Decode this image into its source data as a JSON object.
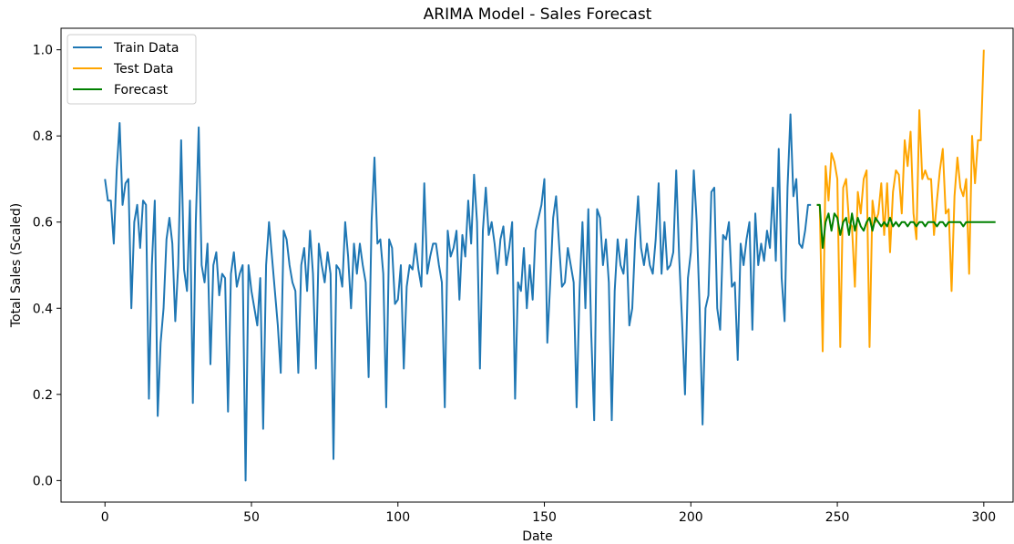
{
  "chart_data": {
    "type": "line",
    "title": "ARIMA Model - Sales Forecast",
    "xlabel": "Date",
    "ylabel": "Total Sales (Scaled)",
    "xlim": [
      -15,
      310
    ],
    "ylim": [
      -0.05,
      1.05
    ],
    "xticks": [
      0,
      50,
      100,
      150,
      200,
      250,
      300
    ],
    "yticks": [
      0.0,
      0.2,
      0.4,
      0.6,
      0.8,
      1.0
    ],
    "xtick_labels": [
      "0",
      "50",
      "100",
      "150",
      "200",
      "250",
      "300"
    ],
    "ytick_labels": [
      "0.0",
      "0.2",
      "0.4",
      "0.6",
      "0.8",
      "1.0"
    ],
    "grid": false,
    "legend_position": "top-left",
    "series": [
      {
        "name": "Train Data",
        "color": "#1f77b4",
        "x_start": 0,
        "values": [
          0.7,
          0.65,
          0.65,
          0.55,
          0.72,
          0.83,
          0.64,
          0.69,
          0.7,
          0.4,
          0.6,
          0.64,
          0.54,
          0.65,
          0.64,
          0.19,
          0.5,
          0.65,
          0.15,
          0.32,
          0.4,
          0.56,
          0.61,
          0.55,
          0.37,
          0.5,
          0.79,
          0.49,
          0.44,
          0.65,
          0.18,
          0.6,
          0.82,
          0.5,
          0.46,
          0.55,
          0.27,
          0.5,
          0.53,
          0.43,
          0.48,
          0.47,
          0.16,
          0.48,
          0.53,
          0.45,
          0.48,
          0.5,
          0.0,
          0.5,
          0.44,
          0.4,
          0.36,
          0.47,
          0.12,
          0.5,
          0.6,
          0.52,
          0.44,
          0.36,
          0.25,
          0.58,
          0.56,
          0.5,
          0.46,
          0.44,
          0.25,
          0.5,
          0.54,
          0.44,
          0.58,
          0.48,
          0.26,
          0.55,
          0.5,
          0.46,
          0.53,
          0.48,
          0.05,
          0.5,
          0.49,
          0.45,
          0.6,
          0.52,
          0.4,
          0.55,
          0.48,
          0.55,
          0.5,
          0.46,
          0.24,
          0.6,
          0.75,
          0.55,
          0.56,
          0.48,
          0.17,
          0.56,
          0.54,
          0.41,
          0.42,
          0.5,
          0.26,
          0.45,
          0.5,
          0.49,
          0.55,
          0.49,
          0.45,
          0.69,
          0.48,
          0.52,
          0.55,
          0.55,
          0.5,
          0.46,
          0.17,
          0.58,
          0.52,
          0.54,
          0.58,
          0.42,
          0.57,
          0.52,
          0.65,
          0.55,
          0.71,
          0.6,
          0.26,
          0.58,
          0.68,
          0.57,
          0.6,
          0.55,
          0.48,
          0.56,
          0.59,
          0.5,
          0.54,
          0.6,
          0.19,
          0.46,
          0.44,
          0.54,
          0.4,
          0.5,
          0.42,
          0.58,
          0.61,
          0.64,
          0.7,
          0.32,
          0.46,
          0.61,
          0.66,
          0.55,
          0.45,
          0.46,
          0.54,
          0.5,
          0.46,
          0.17,
          0.44,
          0.6,
          0.4,
          0.63,
          0.34,
          0.14,
          0.63,
          0.61,
          0.5,
          0.56,
          0.46,
          0.14,
          0.44,
          0.56,
          0.5,
          0.48,
          0.56,
          0.36,
          0.4,
          0.56,
          0.66,
          0.54,
          0.5,
          0.55,
          0.5,
          0.48,
          0.56,
          0.69,
          0.48,
          0.6,
          0.49,
          0.5,
          0.53,
          0.72,
          0.52,
          0.37,
          0.2,
          0.47,
          0.53,
          0.72,
          0.6,
          0.4,
          0.13,
          0.4,
          0.43,
          0.67,
          0.68,
          0.4,
          0.35,
          0.57,
          0.56,
          0.6,
          0.45,
          0.46,
          0.28,
          0.55,
          0.5,
          0.56,
          0.6,
          0.35,
          0.62,
          0.5,
          0.55,
          0.51,
          0.58,
          0.54,
          0.68,
          0.51,
          0.77,
          0.47,
          0.37,
          0.68,
          0.85,
          0.66,
          0.7,
          0.55,
          0.54,
          0.58,
          0.64,
          0.64
        ]
      },
      {
        "name": "Test Data",
        "color": "#ffa500",
        "x_start": 243,
        "values": [
          0.64,
          0.64,
          0.3,
          0.73,
          0.65,
          0.76,
          0.74,
          0.7,
          0.31,
          0.68,
          0.7,
          0.6,
          0.59,
          0.45,
          0.67,
          0.62,
          0.7,
          0.72,
          0.31,
          0.65,
          0.6,
          0.62,
          0.69,
          0.57,
          0.69,
          0.53,
          0.67,
          0.72,
          0.71,
          0.62,
          0.79,
          0.73,
          0.81,
          0.62,
          0.56,
          0.86,
          0.7,
          0.72,
          0.7,
          0.7,
          0.57,
          0.65,
          0.72,
          0.77,
          0.62,
          0.63,
          0.44,
          0.66,
          0.75,
          0.68,
          0.66,
          0.7,
          0.48,
          0.8,
          0.69,
          0.79,
          0.79,
          1.0
        ]
      },
      {
        "name": "Forecast",
        "color": "#008000",
        "x_start": 243,
        "values": [
          0.64,
          0.64,
          0.54,
          0.6,
          0.62,
          0.58,
          0.62,
          0.61,
          0.57,
          0.6,
          0.61,
          0.57,
          0.62,
          0.58,
          0.61,
          0.59,
          0.58,
          0.6,
          0.61,
          0.58,
          0.61,
          0.6,
          0.59,
          0.6,
          0.59,
          0.61,
          0.59,
          0.6,
          0.59,
          0.6,
          0.6,
          0.59,
          0.6,
          0.6,
          0.59,
          0.6,
          0.6,
          0.59,
          0.6,
          0.6,
          0.6,
          0.59,
          0.6,
          0.6,
          0.59,
          0.6,
          0.6,
          0.6,
          0.6,
          0.6,
          0.59,
          0.6,
          0.6,
          0.6,
          0.6,
          0.6,
          0.6,
          0.6,
          0.6,
          0.6,
          0.6,
          0.6
        ]
      }
    ]
  }
}
